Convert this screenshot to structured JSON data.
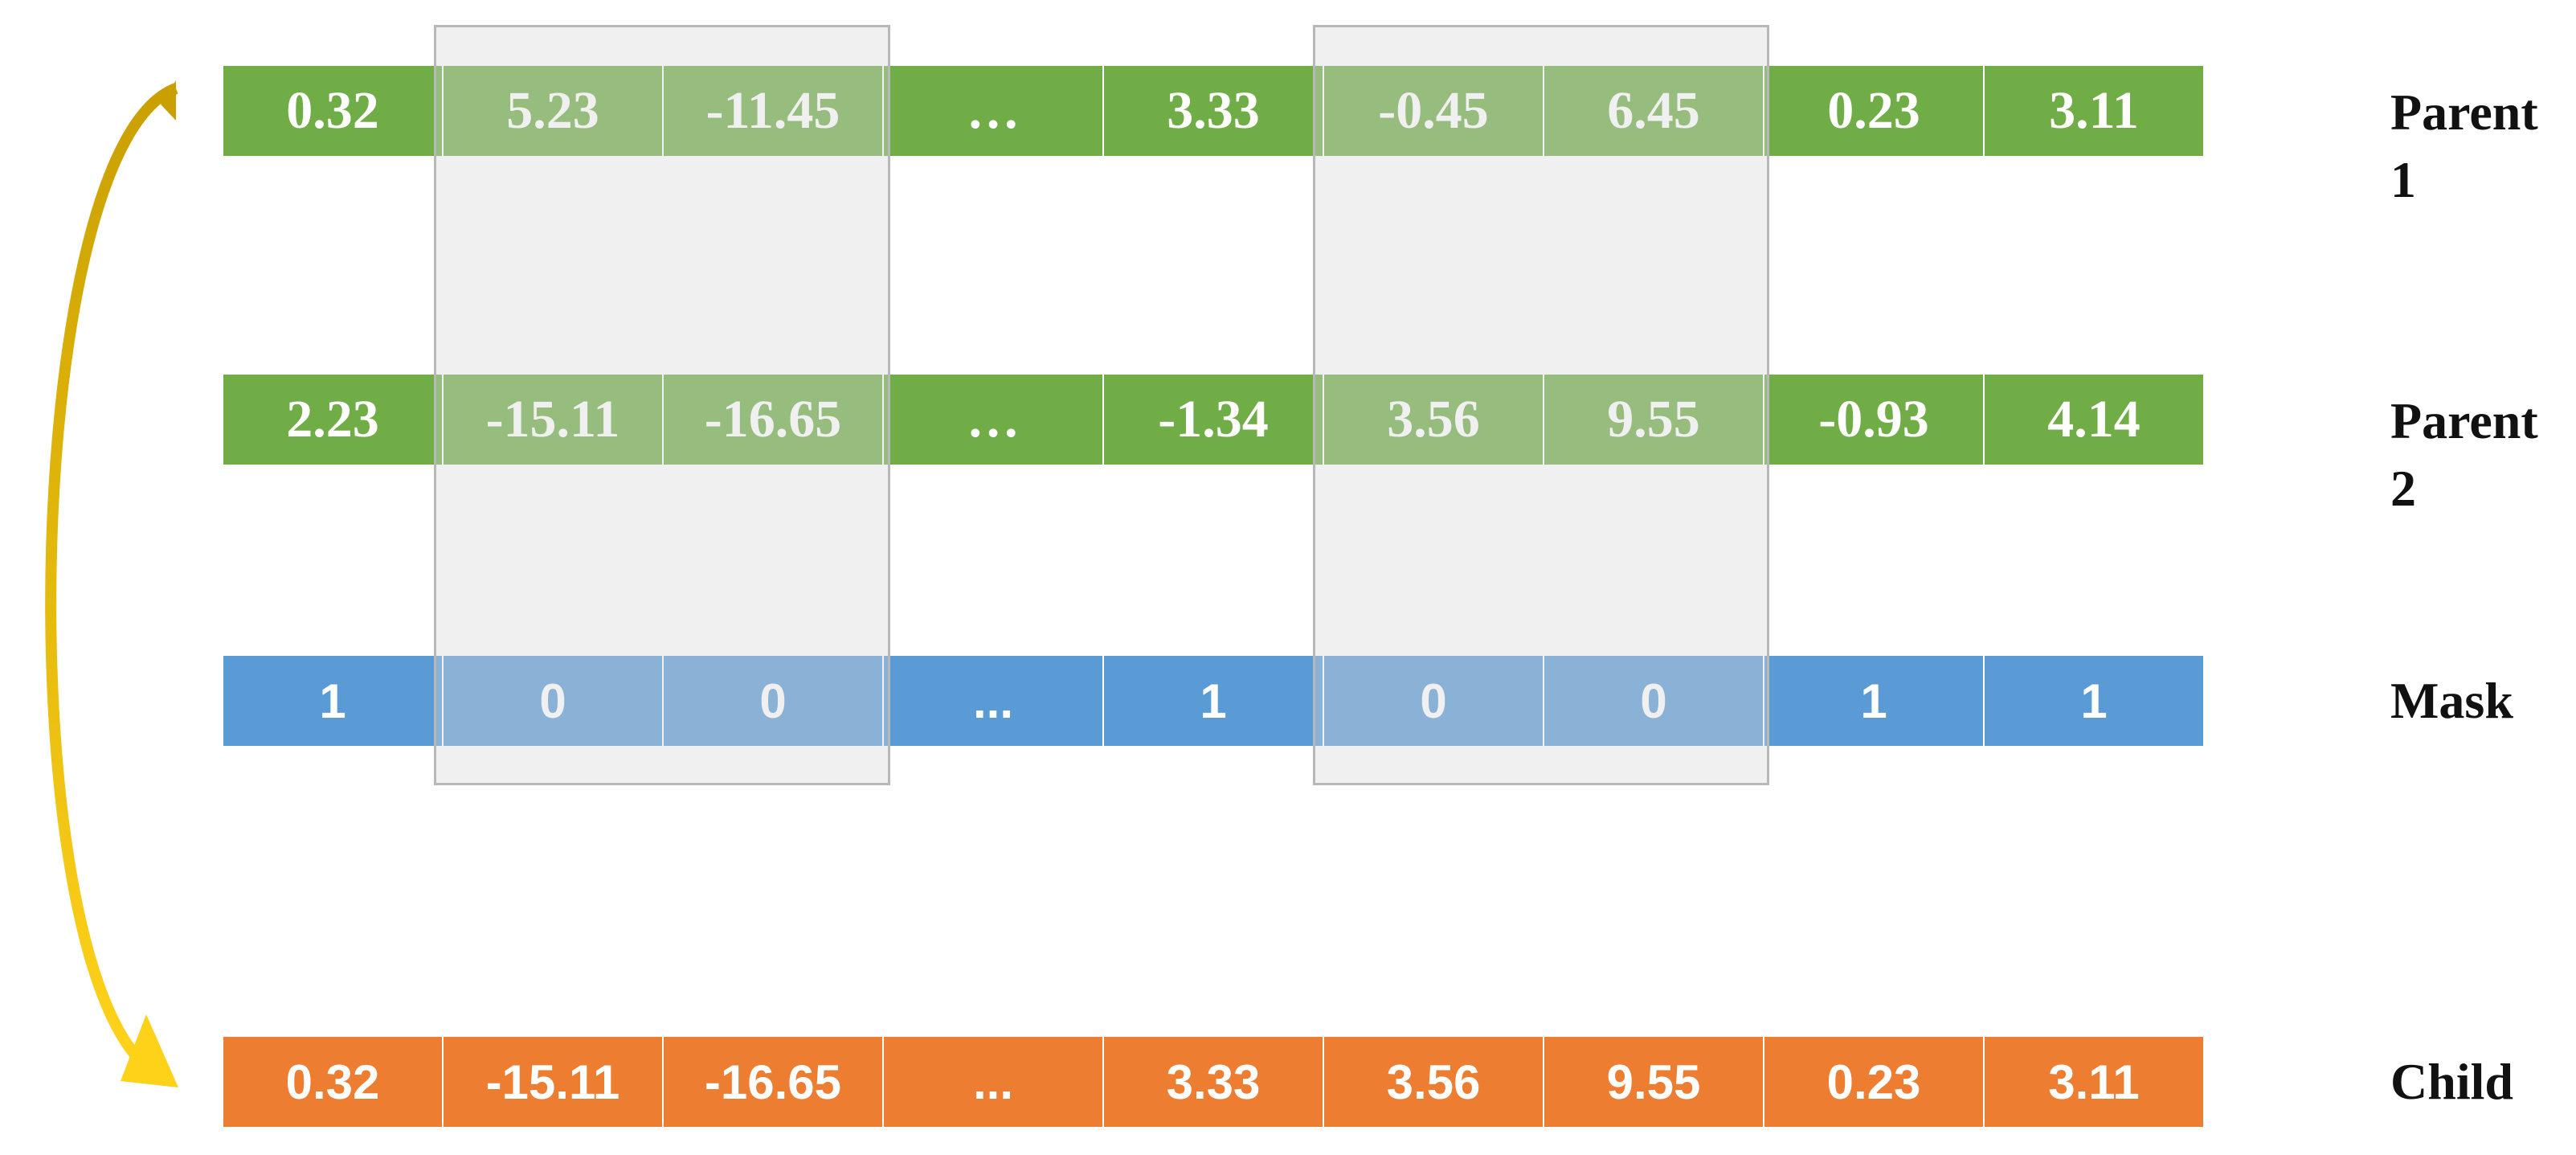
{
  "rows": [
    {
      "label": "Parent 1",
      "cells": [
        "0.32",
        "5.23",
        "-11.45",
        "…",
        "3.33",
        "-0.45",
        "6.45",
        "0.23",
        "3.11"
      ]
    },
    {
      "label": "Parent 2",
      "cells": [
        "2.23",
        "-15.11",
        "-16.65",
        "…",
        "-1.34",
        "3.56",
        "9.55",
        "-0.93",
        "4.14"
      ]
    },
    {
      "label": "Mask",
      "cells": [
        "1",
        "0",
        "0",
        "...",
        "1",
        "0",
        "0",
        "1",
        "1"
      ]
    },
    {
      "label": "Child",
      "cells": [
        "0.32",
        "-15.11",
        "-16.65",
        "...",
        "3.33",
        "3.56",
        "9.55",
        "0.23",
        "3.11"
      ]
    }
  ]
}
